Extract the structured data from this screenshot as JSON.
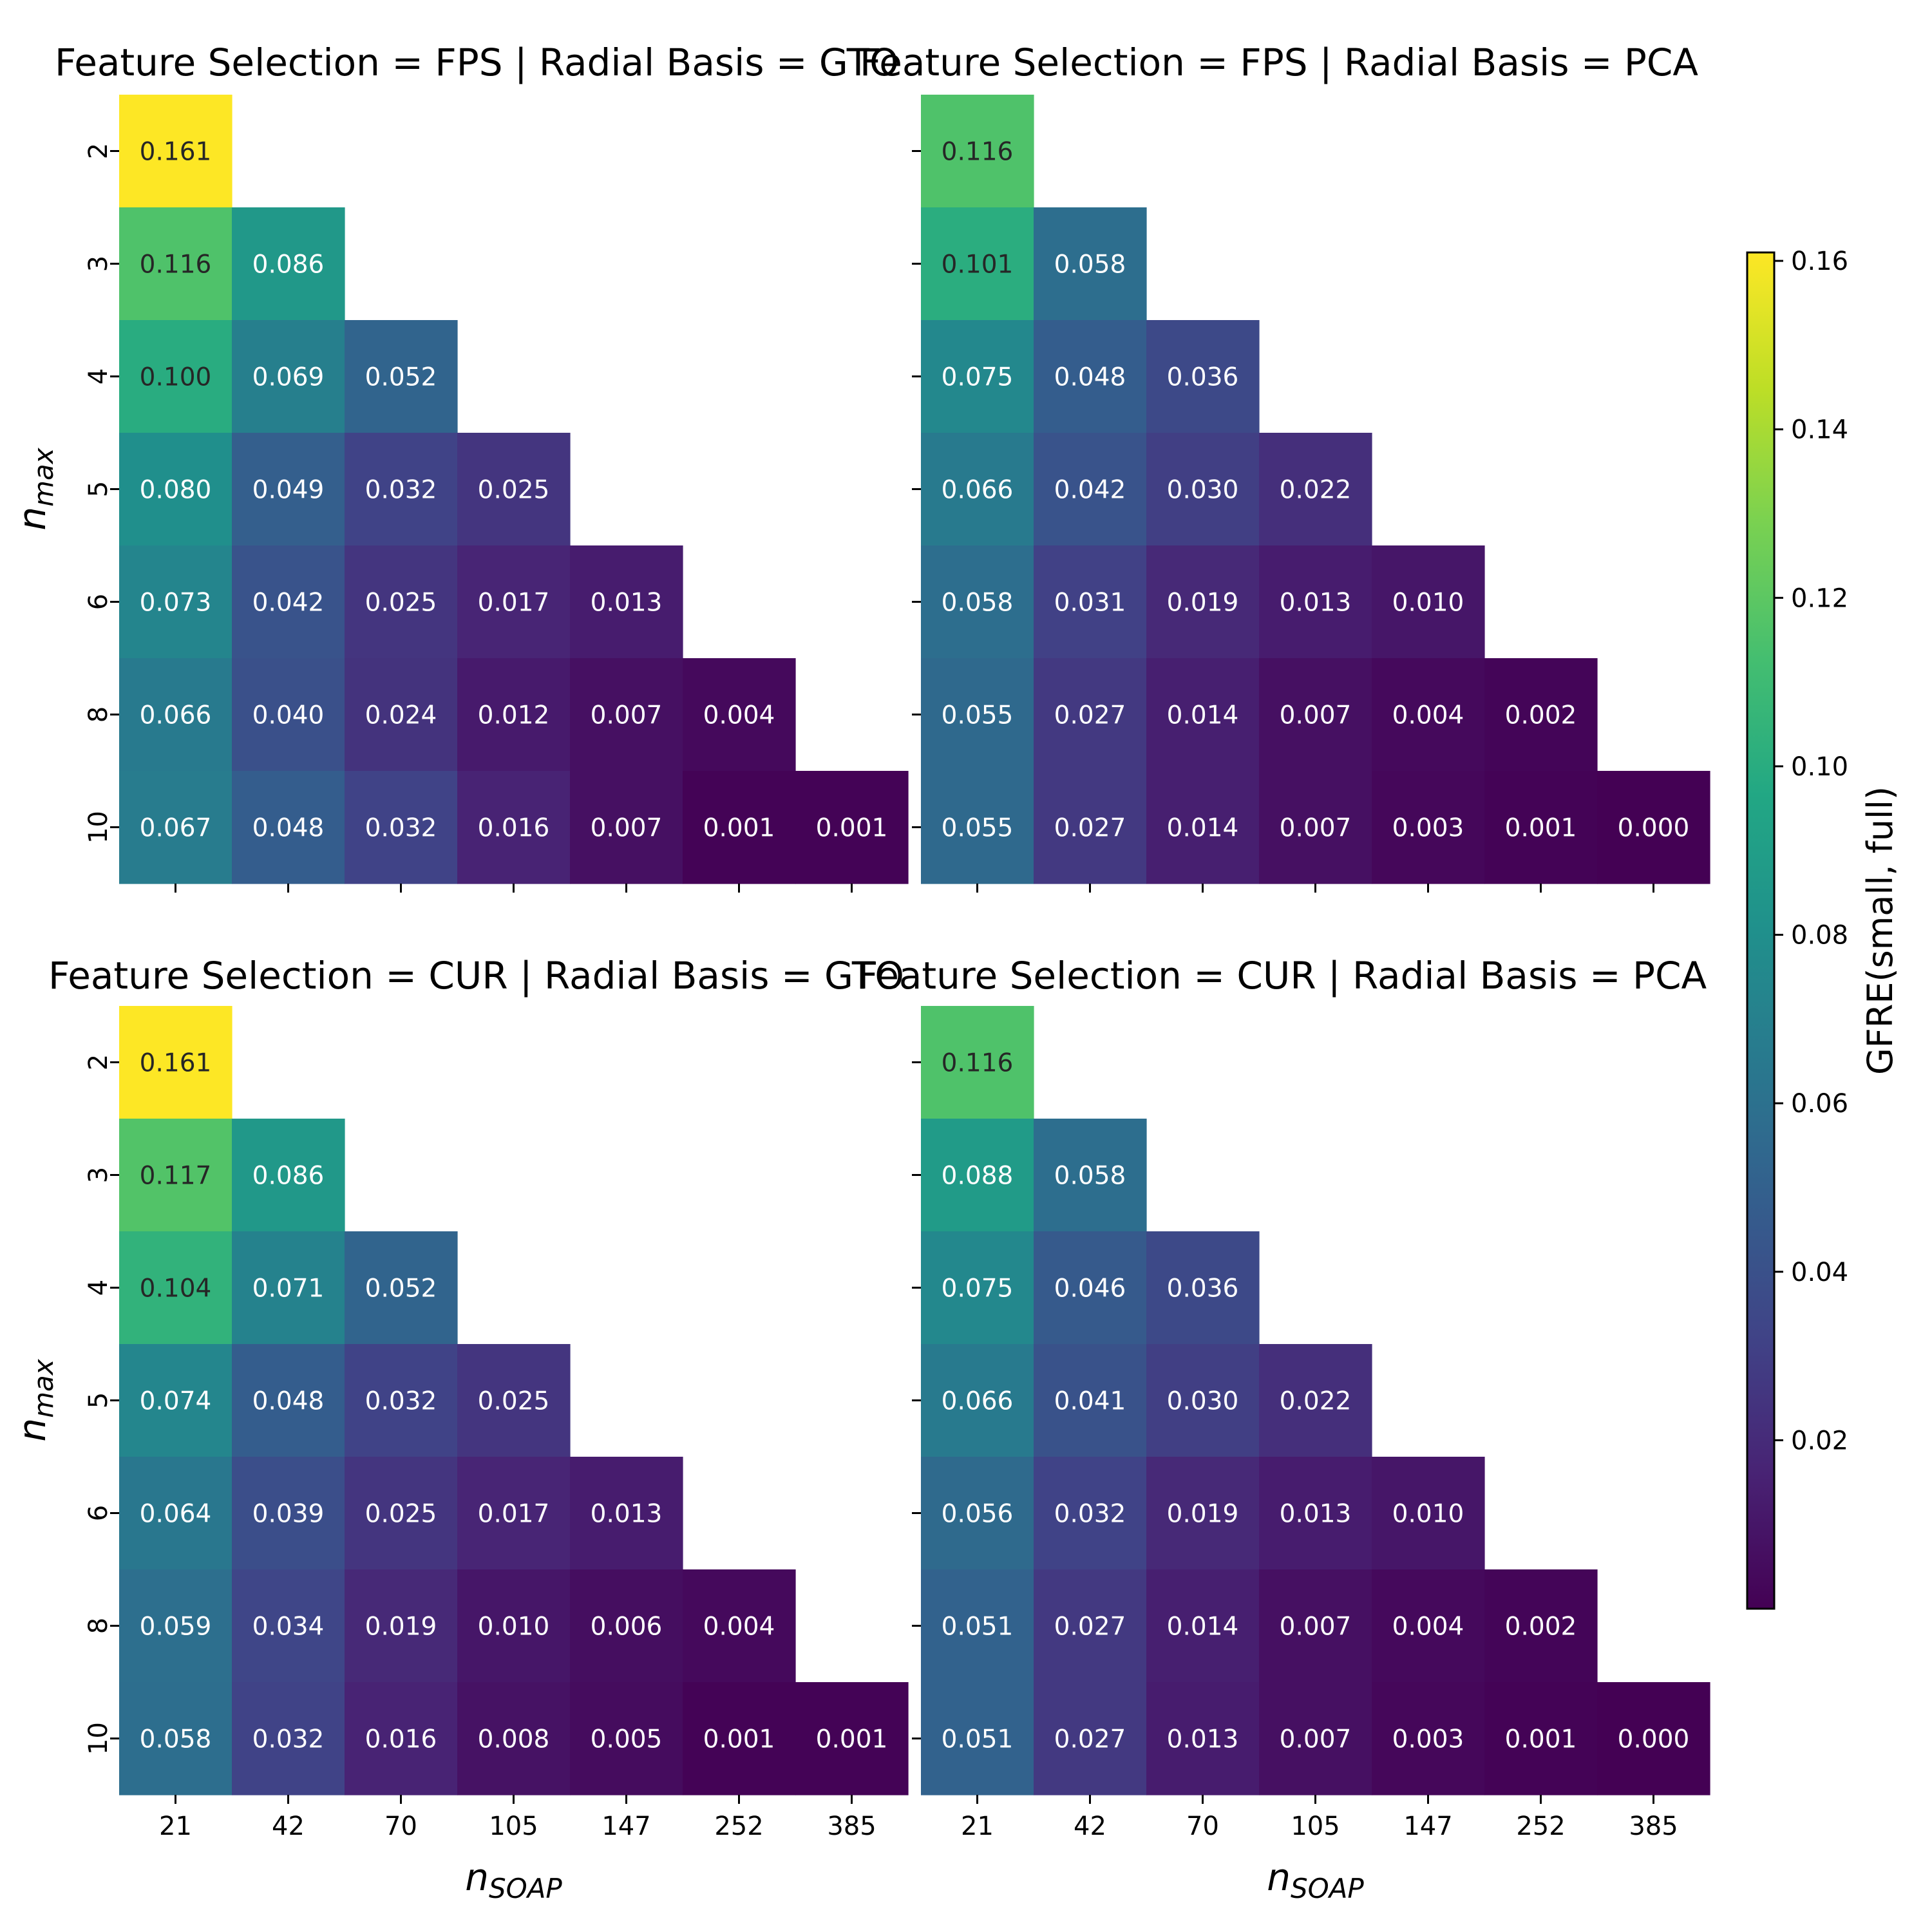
{
  "chart_data": {
    "type": "heatmap",
    "colormap": "viridis",
    "x_ticks": [
      "21",
      "42",
      "70",
      "105",
      "147",
      "252",
      "385"
    ],
    "y_ticks": [
      "2",
      "3",
      "4",
      "5",
      "6",
      "8",
      "10"
    ],
    "xlabel_base": "n",
    "xlabel_sub": "SOAP",
    "ylabel_base": "n",
    "ylabel_sub": "max",
    "colorbar": {
      "label": "GFRE(small, full)",
      "range": [
        0.0,
        0.161
      ],
      "ticks": [
        "0.02",
        "0.04",
        "0.06",
        "0.08",
        "0.10",
        "0.12",
        "0.14",
        "0.16"
      ],
      "tick_values": [
        0.02,
        0.04,
        0.06,
        0.08,
        0.1,
        0.12,
        0.14,
        0.16
      ]
    },
    "panels": [
      {
        "title": "Feature Selection = FPS | Radial Basis = GTO",
        "rows": [
          [
            "0.161"
          ],
          [
            "0.116",
            "0.086"
          ],
          [
            "0.100",
            "0.069",
            "0.052"
          ],
          [
            "0.080",
            "0.049",
            "0.032",
            "0.025"
          ],
          [
            "0.073",
            "0.042",
            "0.025",
            "0.017",
            "0.013"
          ],
          [
            "0.066",
            "0.040",
            "0.024",
            "0.012",
            "0.007",
            "0.004"
          ],
          [
            "0.067",
            "0.048",
            "0.032",
            "0.016",
            "0.007",
            "0.001",
            "0.001"
          ]
        ]
      },
      {
        "title": "Feature Selection = FPS | Radial Basis = PCA",
        "rows": [
          [
            "0.116"
          ],
          [
            "0.101",
            "0.058"
          ],
          [
            "0.075",
            "0.048",
            "0.036"
          ],
          [
            "0.066",
            "0.042",
            "0.030",
            "0.022"
          ],
          [
            "0.058",
            "0.031",
            "0.019",
            "0.013",
            "0.010"
          ],
          [
            "0.055",
            "0.027",
            "0.014",
            "0.007",
            "0.004",
            "0.002"
          ],
          [
            "0.055",
            "0.027",
            "0.014",
            "0.007",
            "0.003",
            "0.001",
            "0.000"
          ]
        ]
      },
      {
        "title": "Feature Selection = CUR | Radial Basis = GTO",
        "rows": [
          [
            "0.161"
          ],
          [
            "0.117",
            "0.086"
          ],
          [
            "0.104",
            "0.071",
            "0.052"
          ],
          [
            "0.074",
            "0.048",
            "0.032",
            "0.025"
          ],
          [
            "0.064",
            "0.039",
            "0.025",
            "0.017",
            "0.013"
          ],
          [
            "0.059",
            "0.034",
            "0.019",
            "0.010",
            "0.006",
            "0.004"
          ],
          [
            "0.058",
            "0.032",
            "0.016",
            "0.008",
            "0.005",
            "0.001",
            "0.001"
          ]
        ]
      },
      {
        "title": "Feature Selection = CUR | Radial Basis = PCA",
        "rows": [
          [
            "0.116"
          ],
          [
            "0.088",
            "0.058"
          ],
          [
            "0.075",
            "0.046",
            "0.036"
          ],
          [
            "0.066",
            "0.041",
            "0.030",
            "0.022"
          ],
          [
            "0.056",
            "0.032",
            "0.019",
            "0.013",
            "0.010"
          ],
          [
            "0.051",
            "0.027",
            "0.014",
            "0.007",
            "0.004",
            "0.002"
          ],
          [
            "0.051",
            "0.027",
            "0.013",
            "0.007",
            "0.003",
            "0.001",
            "0.000"
          ]
        ]
      }
    ]
  }
}
